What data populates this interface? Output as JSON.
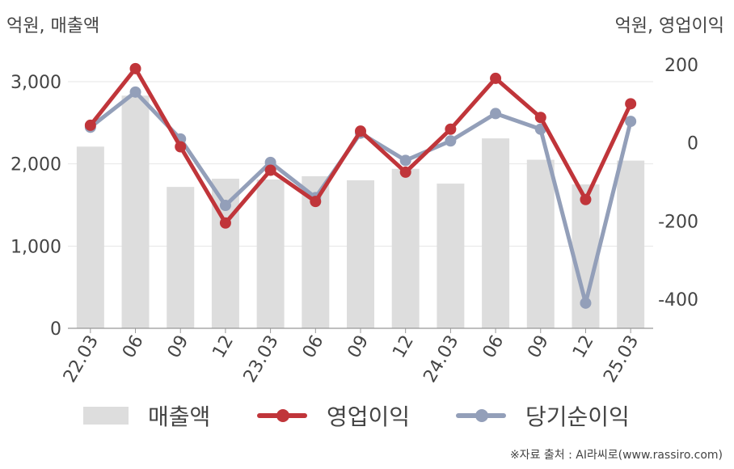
{
  "units": {
    "left": "억원, 매출액",
    "right": "억원, 영업이익"
  },
  "legend": {
    "revenue": "매출액",
    "operating": "영업이익",
    "net": "당기순이익"
  },
  "source": "※자료 출처 : AI라씨로(www.rassiro.com)",
  "colors": {
    "bar": "#dddddd",
    "operating": "#c0353a",
    "net": "#939fb9",
    "axis": "#999999",
    "grid": "#e6e6e6"
  },
  "chart_data": {
    "type": "bar",
    "categories": [
      "22.03",
      "06",
      "09",
      "12",
      "23.03",
      "06",
      "09",
      "12",
      "24.03",
      "06",
      "09",
      "12",
      "25.03"
    ],
    "left_axis": {
      "min": 0,
      "max": 3000,
      "ticks": [
        0,
        1000,
        2000,
        3000
      ],
      "tick_labels": [
        "0",
        "1,000",
        "2,000",
        "3,000"
      ]
    },
    "right_axis": {
      "min": -400,
      "max": 200,
      "ticks": [
        -400,
        -200,
        0,
        200
      ],
      "tick_labels": [
        "-400",
        "-200",
        "0",
        "200"
      ]
    },
    "series": [
      {
        "name": "매출액",
        "type": "bar",
        "axis": "left",
        "values": [
          2210,
          2830,
          1720,
          1820,
          1810,
          1850,
          1800,
          1940,
          1760,
          2310,
          2050,
          1750,
          2040
        ]
      },
      {
        "name": "영업이익",
        "type": "line",
        "axis": "right",
        "values": [
          45,
          190,
          -10,
          -205,
          -70,
          -150,
          30,
          -75,
          35,
          165,
          65,
          -145,
          100
        ]
      },
      {
        "name": "당기순이익",
        "type": "line",
        "axis": "right",
        "values": [
          40,
          130,
          10,
          -160,
          -50,
          -140,
          25,
          -45,
          5,
          75,
          35,
          -410,
          55
        ]
      }
    ]
  }
}
